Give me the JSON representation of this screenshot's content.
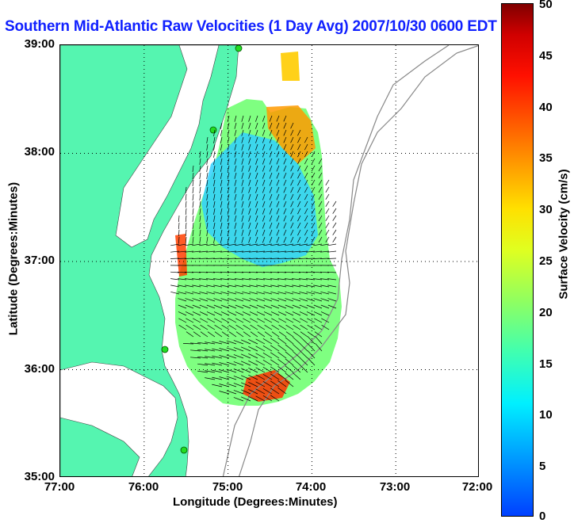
{
  "title": "Southern Mid-Atlantic Raw Velocities (1 Day Avg) 2007/10/30 0600 EDT",
  "xlabel": "Longitude (Degrees:Minutes)",
  "ylabel": "Latitude (Degrees:Minutes)",
  "x_ticks": [
    "77:00",
    "76:00",
    "75:00",
    "74:00",
    "73:00",
    "72:00"
  ],
  "y_ticks": [
    "39:00",
    "38:00",
    "37:00",
    "36:00",
    "35:00"
  ],
  "colorbar": {
    "label": "Surface Velocity (cm/s)",
    "ticks": [
      "50",
      "45",
      "40",
      "35",
      "30",
      "25",
      "20",
      "15",
      "10",
      "5",
      "0"
    ],
    "range": [
      0,
      50
    ]
  },
  "colors": {
    "land": "#55f5b0",
    "title": "#1020ff",
    "bathymetry": "#888888",
    "station": "#22dd22"
  },
  "map": {
    "lon_range": [
      -77,
      -72
    ],
    "lat_range": [
      35,
      39
    ],
    "grid": "dotted"
  }
}
